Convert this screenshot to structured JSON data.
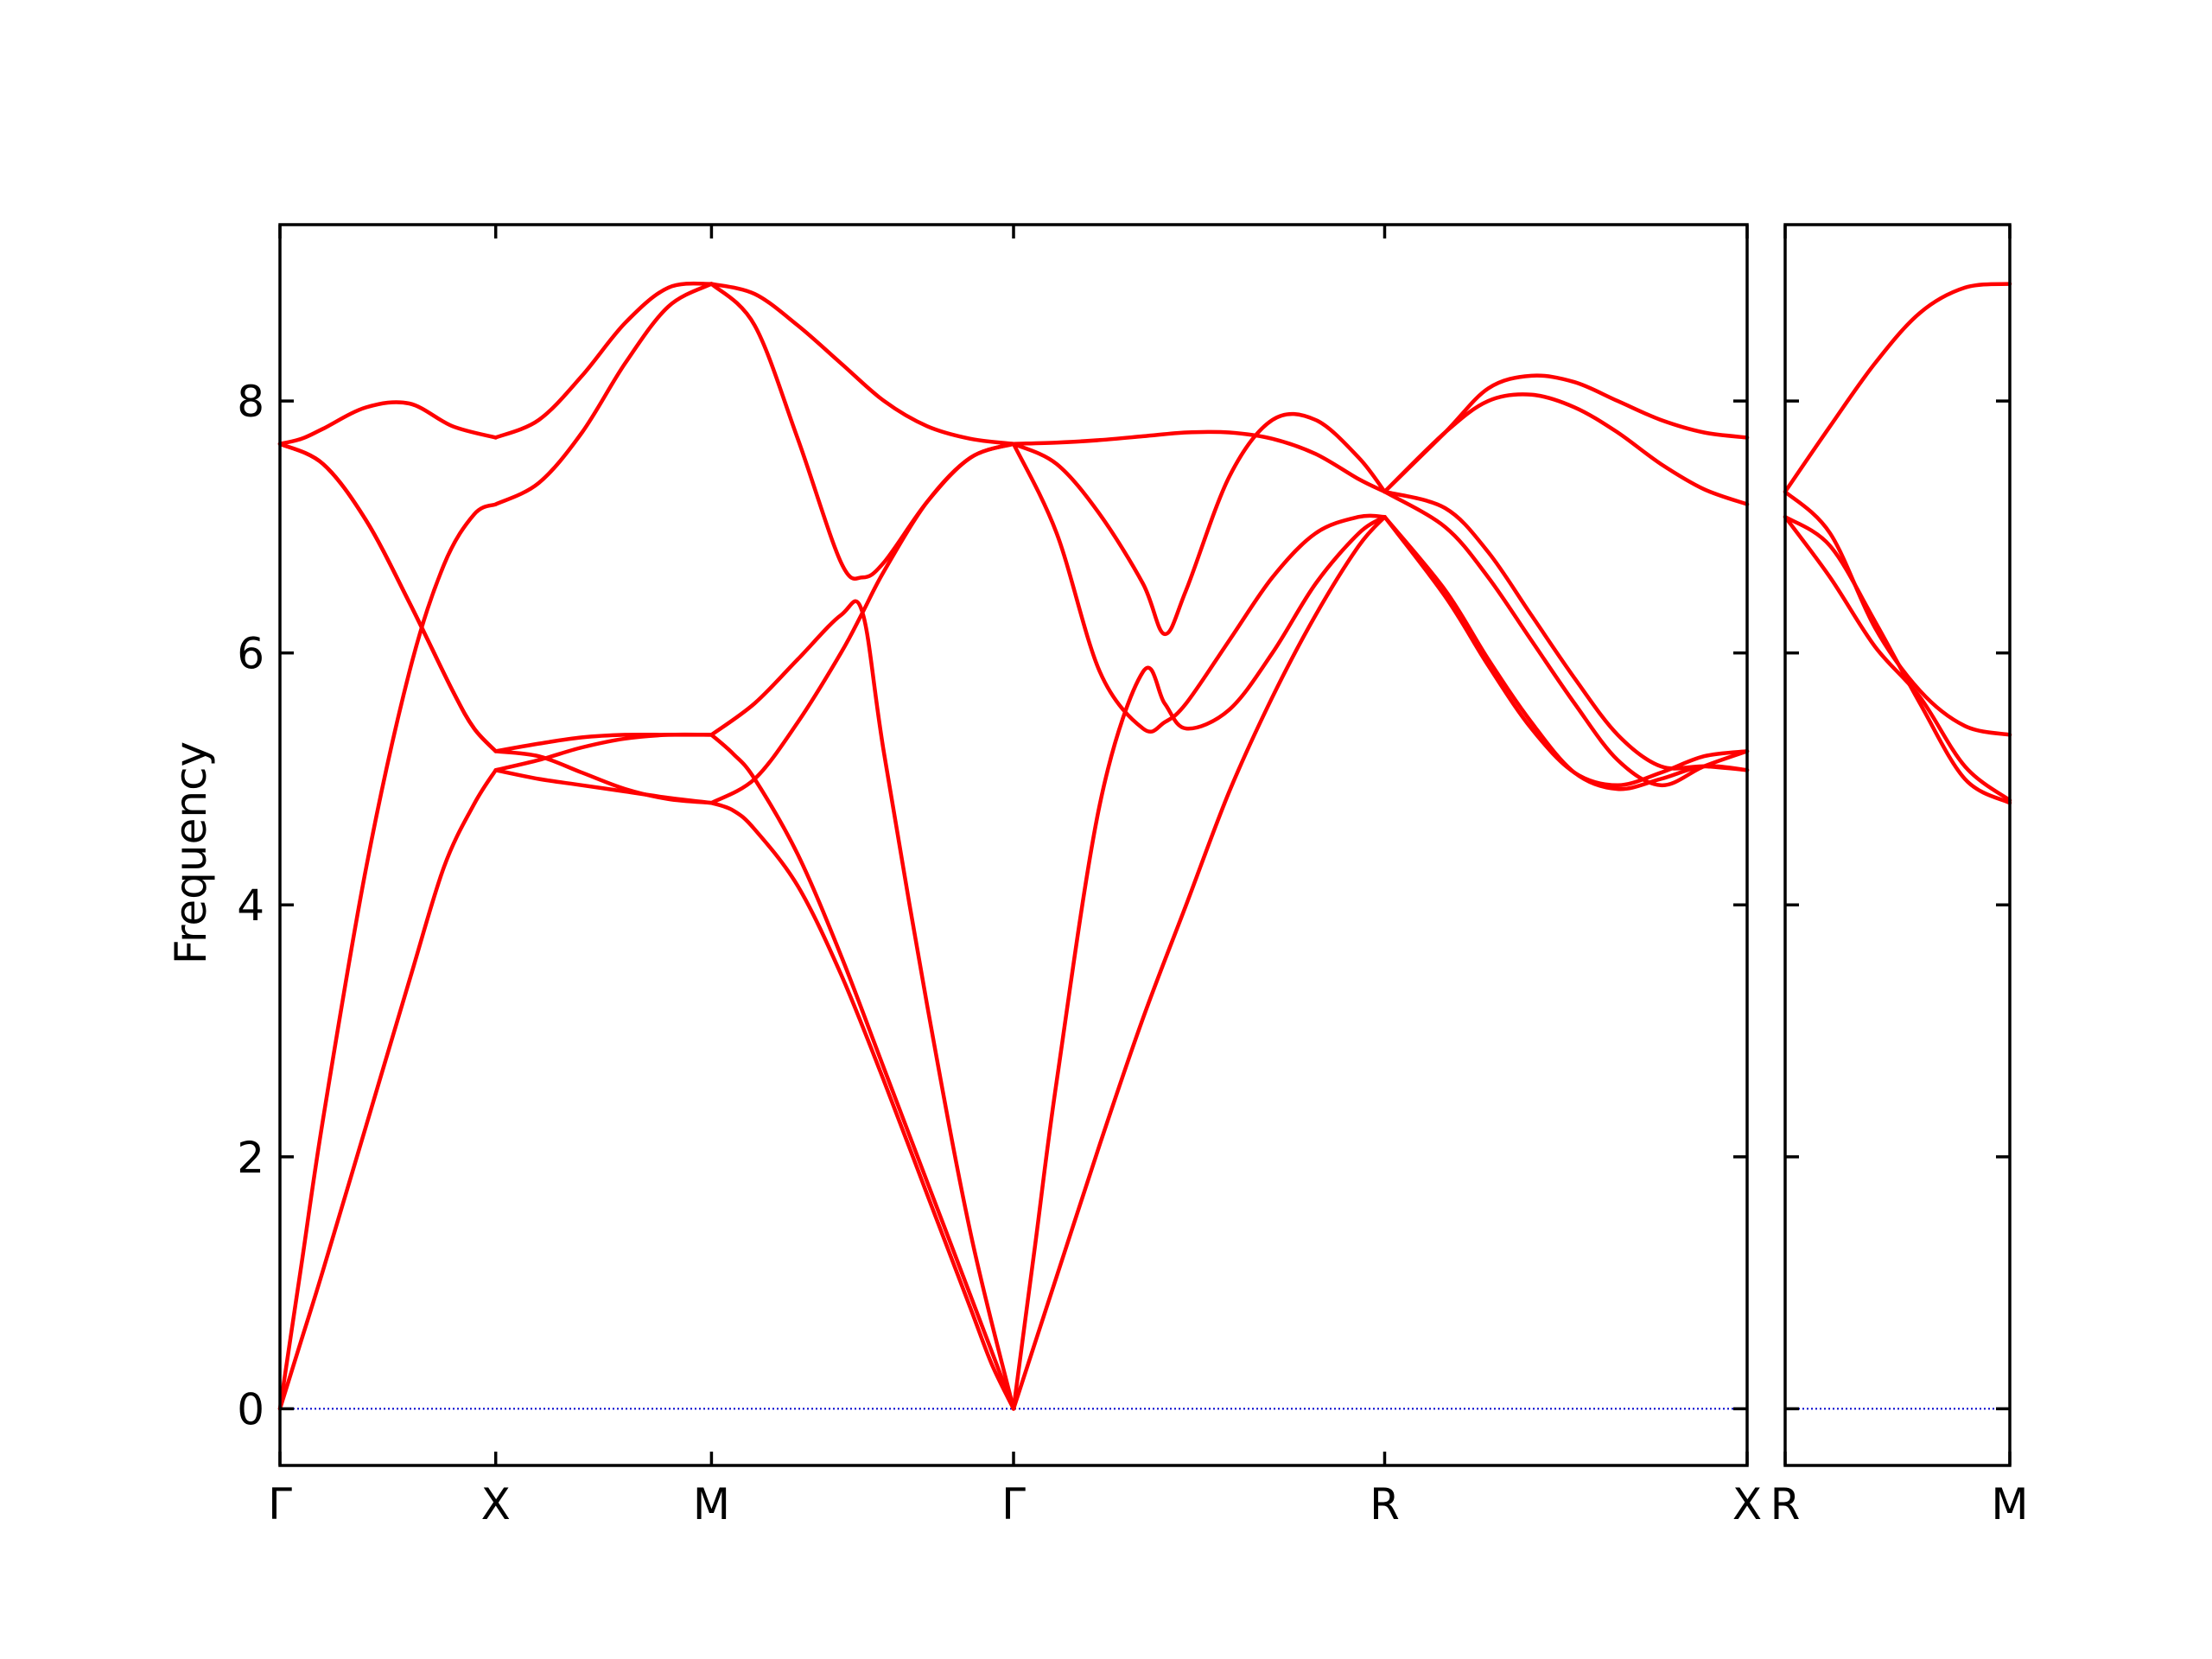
{
  "chart_data": {
    "type": "line",
    "ylabel": "Frequency",
    "ylim": [
      -0.45,
      9.4
    ],
    "yticks": [
      0,
      2,
      4,
      6,
      8
    ],
    "ytick_labels": [
      "0",
      "2",
      "4",
      "6",
      "8"
    ],
    "line_color": "#ff0000",
    "zero_line_color": "#0000cc",
    "panels": [
      {
        "xlim": [
          0,
          3.4
        ],
        "kpoints": [
          {
            "x": 0.0,
            "label": "Γ"
          },
          {
            "x": 0.5,
            "label": "X"
          },
          {
            "x": 1.0,
            "label": "M"
          },
          {
            "x": 1.7,
            "label": "Γ"
          },
          {
            "x": 2.56,
            "label": "R"
          },
          {
            "x": 3.4,
            "label": "X"
          }
        ],
        "series": [
          {
            "x": [
              0,
              0.05,
              0.1,
              0.2,
              0.3,
              0.38,
              0.45,
              0.5
            ],
            "values": [
              0,
              0.55,
              1.1,
              2.25,
              3.4,
              4.3,
              4.8,
              5.07
            ]
          },
          {
            "x": [
              0.5,
              0.6,
              0.7,
              0.8,
              0.9,
              1.0
            ],
            "values": [
              5.07,
              5.0,
              4.95,
              4.9,
              4.85,
              4.81
            ]
          },
          {
            "x": [
              1.0,
              1.05,
              1.1,
              1.2,
              1.3,
              1.4,
              1.5,
              1.6,
              1.65,
              1.7
            ],
            "values": [
              4.81,
              4.75,
              4.6,
              4.15,
              3.45,
              2.6,
              1.7,
              0.8,
              0.35,
              0
            ]
          },
          {
            "x": [
              1.7,
              1.8,
              1.9,
              2.0,
              2.1,
              2.2,
              2.3,
              2.4,
              2.5,
              2.56
            ],
            "values": [
              0,
              1.05,
              2.1,
              3.1,
              4.0,
              4.9,
              5.65,
              6.3,
              6.85,
              7.08
            ]
          },
          {
            "x": [
              2.56,
              2.7,
              2.8,
              2.9,
              3.0,
              3.1,
              3.2,
              3.3,
              3.4
            ],
            "values": [
              7.08,
              6.5,
              5.95,
              5.45,
              5.05,
              4.92,
              5.0,
              5.1,
              5.07
            ]
          },
          {
            "x": [
              0,
              0.05,
              0.1,
              0.2,
              0.3,
              0.38,
              0.45,
              0.5
            ],
            "values": [
              0,
              1.15,
              2.3,
              4.3,
              5.85,
              6.7,
              7.1,
              7.18
            ]
          },
          {
            "x": [
              0.5,
              0.6,
              0.7,
              0.8,
              0.9,
              1.0
            ],
            "values": [
              7.18,
              7.35,
              7.75,
              8.3,
              8.75,
              8.93
            ]
          },
          {
            "x": [
              1.0,
              1.1,
              1.2,
              1.3,
              1.35,
              1.4,
              1.5,
              1.6,
              1.7
            ],
            "values": [
              8.93,
              8.6,
              7.7,
              6.72,
              6.6,
              6.72,
              7.2,
              7.55,
              7.66
            ]
          },
          {
            "x": [
              1.7,
              1.8,
              1.9,
              2.0,
              2.05,
              2.1,
              2.2,
              2.3,
              2.4,
              2.5,
              2.56
            ],
            "values": [
              7.66,
              7.5,
              7.1,
              6.55,
              6.15,
              6.5,
              7.4,
              7.85,
              7.85,
              7.55,
              7.28
            ]
          },
          {
            "x": [
              2.56,
              2.7,
              2.8,
              2.9,
              3.0,
              3.1,
              3.2,
              3.3,
              3.4
            ],
            "values": [
              7.28,
              7.75,
              8.0,
              8.05,
              7.95,
              7.75,
              7.5,
              7.3,
              7.18
            ]
          },
          {
            "x": [
              0,
              0.1,
              0.2,
              0.3,
              0.4,
              0.45,
              0.5
            ],
            "values": [
              7.66,
              7.5,
              7.05,
              6.4,
              5.7,
              5.4,
              5.22
            ]
          },
          {
            "x": [
              0.5,
              0.6,
              0.7,
              0.8,
              0.9,
              1.0
            ],
            "values": [
              5.22,
              5.18,
              5.05,
              4.92,
              4.84,
              4.81
            ]
          },
          {
            "x": [
              1.0,
              1.1,
              1.2,
              1.3,
              1.35,
              1.4,
              1.5,
              1.6,
              1.7
            ],
            "values": [
              4.81,
              5.0,
              5.45,
              6.0,
              6.32,
              6.65,
              7.2,
              7.55,
              7.66
            ]
          },
          {
            "x": [
              1.7,
              1.8,
              1.9,
              2.0,
              2.1,
              2.2,
              2.3,
              2.4,
              2.5,
              2.56
            ],
            "values": [
              7.66,
              7.67,
              7.69,
              7.72,
              7.75,
              7.75,
              7.7,
              7.58,
              7.38,
              7.28
            ]
          },
          {
            "x": [
              2.56,
              2.7,
              2.8,
              2.9,
              3.0,
              3.1,
              3.2,
              3.3,
              3.4
            ],
            "values": [
              7.28,
              7.0,
              6.6,
              6.1,
              5.6,
              5.15,
              4.95,
              5.1,
              5.22
            ]
          },
          {
            "x": [
              0,
              0.05,
              0.1,
              0.2,
              0.3,
              0.4,
              0.5
            ],
            "values": [
              7.66,
              7.7,
              7.78,
              7.95,
              7.98,
              7.8,
              7.71
            ]
          },
          {
            "x": [
              0.5,
              0.6,
              0.7,
              0.8,
              0.9,
              1.0
            ],
            "values": [
              7.71,
              7.85,
              8.2,
              8.62,
              8.9,
              8.93
            ]
          },
          {
            "x": [
              1.0,
              1.1,
              1.2,
              1.3,
              1.4,
              1.5,
              1.6,
              1.7
            ],
            "values": [
              8.93,
              8.85,
              8.6,
              8.3,
              8.0,
              7.8,
              7.7,
              7.66
            ]
          },
          {
            "x": [
              1.7,
              1.8,
              1.9,
              2.0,
              2.05,
              2.1,
              2.2,
              2.3,
              2.4,
              2.5,
              2.56
            ],
            "values": [
              7.66,
              6.95,
              5.85,
              5.4,
              5.45,
              5.6,
              6.1,
              6.6,
              6.95,
              7.08,
              7.08
            ]
          },
          {
            "x": [
              2.56,
              2.7,
              2.8,
              2.9,
              3.0,
              3.1,
              3.2,
              3.3,
              3.4
            ],
            "values": [
              7.28,
              7.75,
              8.1,
              8.2,
              8.15,
              8.0,
              7.85,
              7.75,
              7.71
            ]
          },
          {
            "x": [
              0,
              0.1,
              0.2,
              0.3,
              0.4,
              0.45,
              0.5
            ],
            "values": [
              7.66,
              7.5,
              7.05,
              6.4,
              5.7,
              5.4,
              5.22
            ]
          },
          {
            "x": [
              0.5,
              0.6,
              0.7,
              0.8,
              0.9,
              1.0
            ],
            "values": [
              5.07,
              5.15,
              5.25,
              5.32,
              5.35,
              5.35
            ]
          },
          {
            "x": [
              1.0,
              1.05,
              1.1,
              1.2,
              1.3,
              1.4,
              1.5,
              1.6,
              1.65,
              1.7
            ],
            "values": [
              5.35,
              5.2,
              5.0,
              4.4,
              3.6,
              2.7,
              1.8,
              0.9,
              0.45,
              0
            ]
          },
          {
            "x": [
              1.7,
              1.75,
              1.8,
              1.9,
              2.0,
              2.05,
              2.1,
              2.2,
              2.3,
              2.4,
              2.5,
              2.56
            ],
            "values": [
              0,
              1.3,
              2.6,
              4.8,
              5.85,
              5.6,
              5.4,
              5.55,
              6.0,
              6.55,
              6.95,
              7.08
            ]
          },
          {
            "x": [
              2.56,
              2.7,
              2.8,
              2.9,
              3.0,
              3.1,
              3.2,
              3.3,
              3.4
            ],
            "values": [
              7.08,
              6.45,
              5.9,
              5.4,
              5.05,
              4.95,
              5.05,
              5.18,
              5.22
            ]
          },
          {
            "x": [
              0.5,
              0.6,
              0.7,
              0.8,
              0.9,
              1.0
            ],
            "values": [
              5.22,
              5.28,
              5.33,
              5.35,
              5.35,
              5.35
            ]
          },
          {
            "x": [
              1.0,
              1.1,
              1.2,
              1.3,
              1.35,
              1.4,
              1.5,
              1.6,
              1.7
            ],
            "values": [
              5.35,
              5.6,
              5.95,
              6.3,
              6.32,
              5.2,
              3.2,
              1.4,
              0
            ]
          },
          {
            "x": [
              2.56,
              2.7,
              2.8,
              2.9,
              3.0,
              3.1,
              3.2,
              3.3,
              3.4
            ],
            "values": [
              7.28,
              7.15,
              6.8,
              6.3,
              5.8,
              5.35,
              5.1,
              5.1,
              5.07
            ]
          }
        ]
      },
      {
        "xlim": [
          0,
          0.5
        ],
        "kpoints": [
          {
            "x": 0.0,
            "label": "R"
          },
          {
            "x": 0.5,
            "label": "M"
          }
        ],
        "series": [
          {
            "x": [
              0,
              0.1,
              0.2,
              0.3,
              0.4,
              0.5
            ],
            "values": [
              7.28,
              7.8,
              8.3,
              8.7,
              8.9,
              8.93
            ]
          },
          {
            "x": [
              0,
              0.1,
              0.2,
              0.3,
              0.4,
              0.5
            ],
            "values": [
              7.28,
              6.95,
              6.2,
              5.7,
              5.42,
              5.35
            ]
          },
          {
            "x": [
              0,
              0.1,
              0.2,
              0.3,
              0.4,
              0.5
            ],
            "values": [
              7.08,
              6.85,
              6.25,
              5.6,
              5.0,
              4.81
            ]
          },
          {
            "x": [
              0,
              0.1,
              0.2,
              0.3,
              0.4,
              0.5
            ],
            "values": [
              7.08,
              6.6,
              6.05,
              5.65,
              5.1,
              4.83
            ]
          }
        ]
      }
    ]
  }
}
